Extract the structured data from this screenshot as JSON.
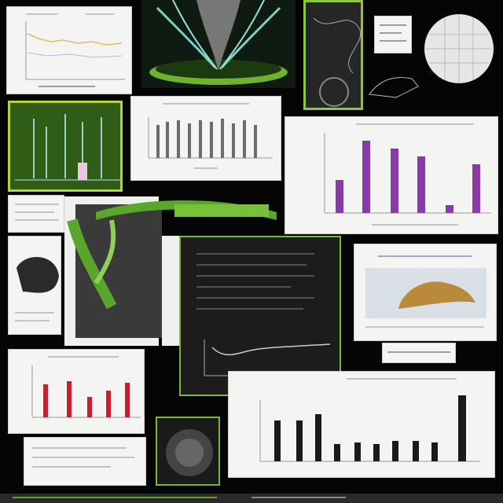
{
  "collage": {
    "colors": {
      "background": "#050505",
      "paper": "#f4f4f2",
      "vine_green": "#5aa62a",
      "bar_purple": "#8a3aa8",
      "bar_red": "#c8202a",
      "bar_black": "#1a1a1a",
      "bar_gray": "#6b6b6b"
    },
    "icons": [
      "plant-vine-graphic",
      "specimen-photo",
      "circular-mesh-graphic",
      "cell-texture-image"
    ]
  }
}
